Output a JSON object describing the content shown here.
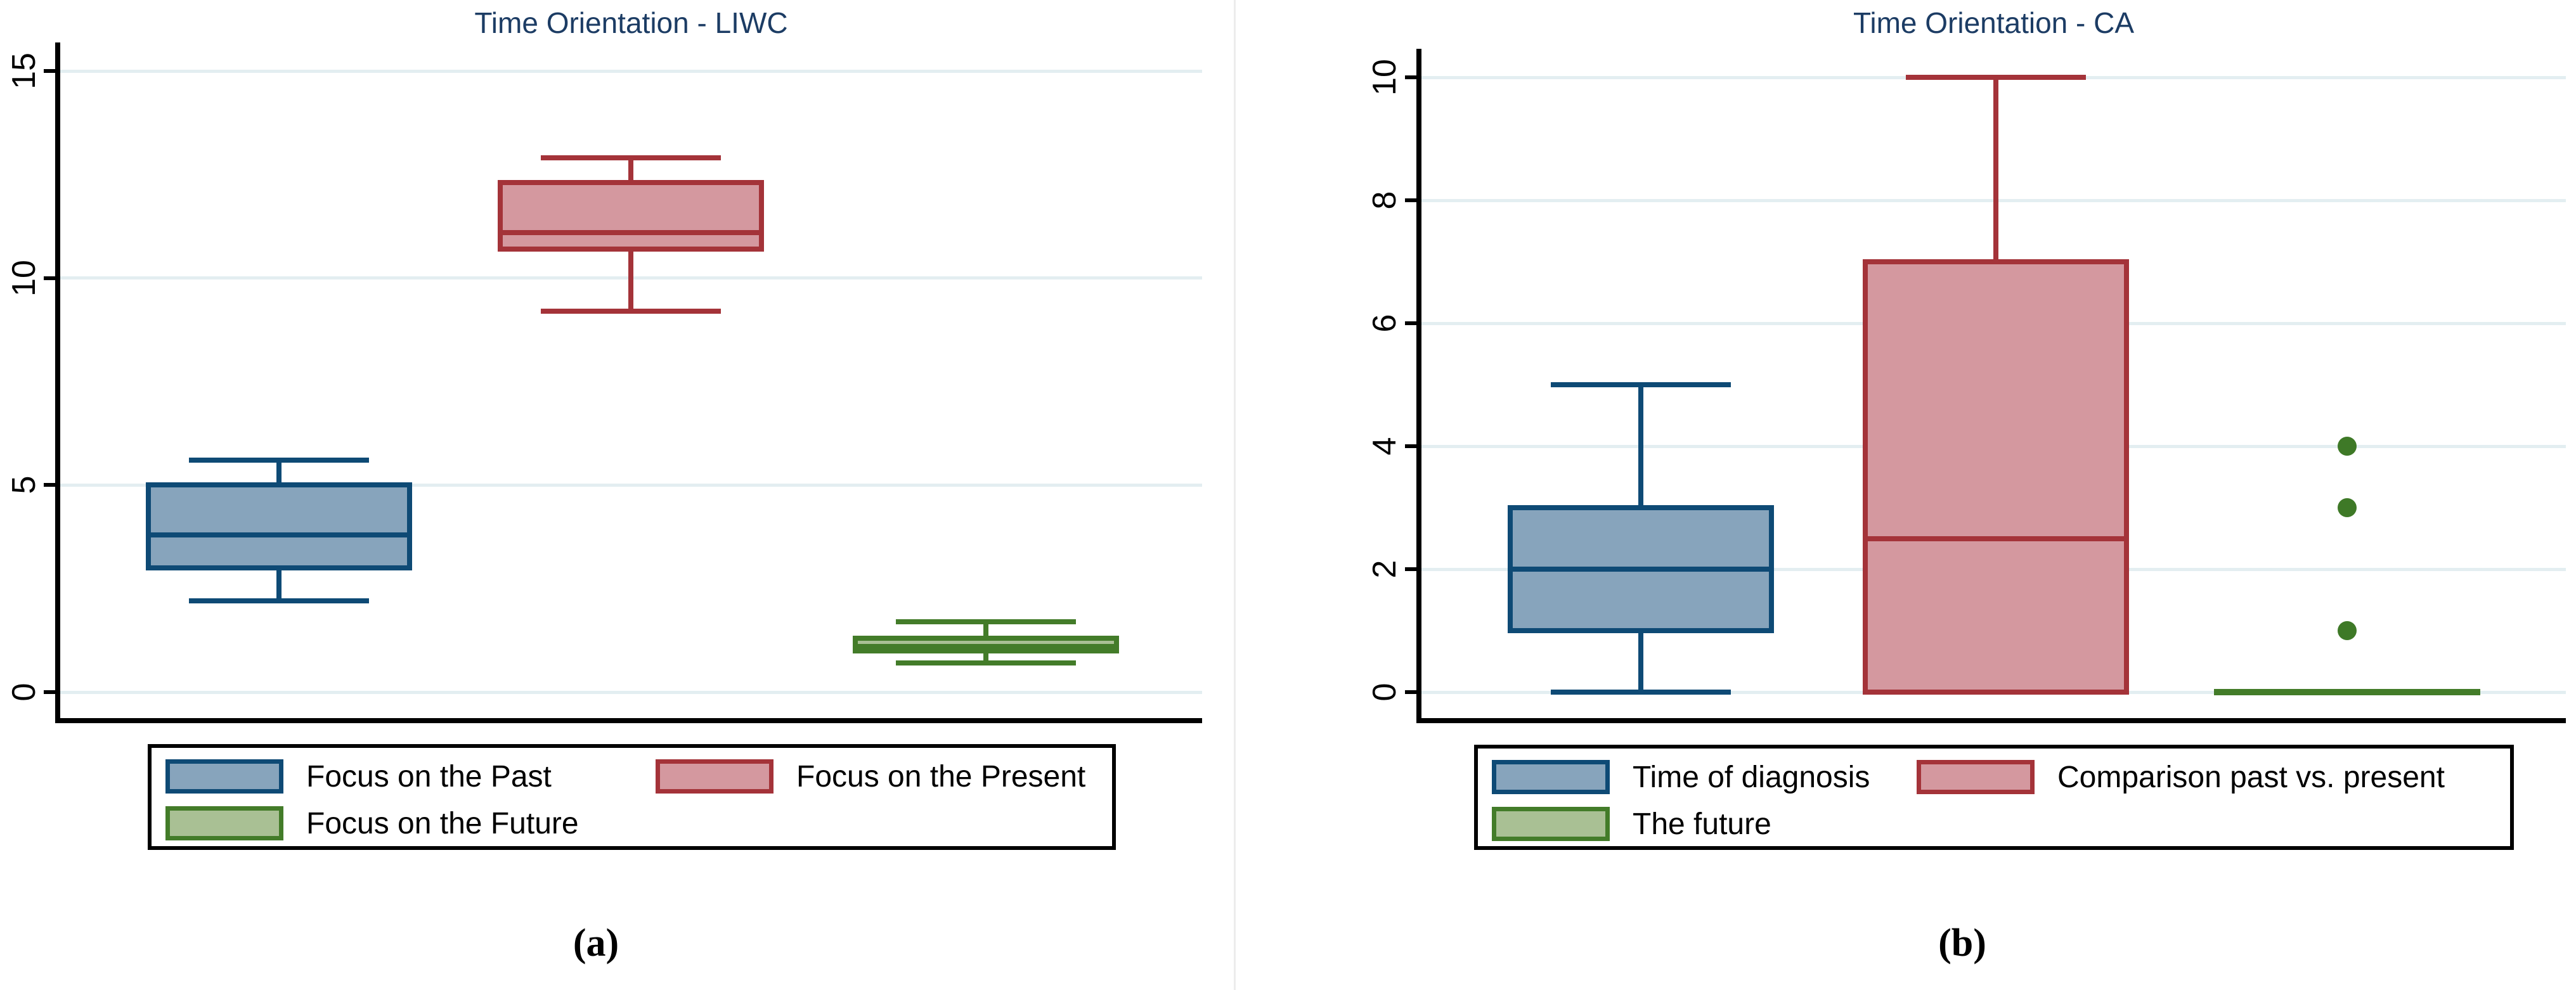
{
  "chart_data": [
    {
      "type": "box",
      "title": "Time Orientation - LIWC",
      "caption": "(a)",
      "ylim": [
        0,
        15
      ],
      "yticks": [
        0,
        5,
        10,
        15
      ],
      "grid": true,
      "legend_position": "bottom",
      "series": [
        {
          "name": "Focus on the Past",
          "min": 2.2,
          "q1": 3.0,
          "median": 3.8,
          "q3": 5.0,
          "max": 5.6,
          "outliers": []
        },
        {
          "name": "Focus on the Present",
          "min": 9.2,
          "q1": 10.7,
          "median": 11.1,
          "q3": 12.3,
          "max": 12.9,
          "outliers": []
        },
        {
          "name": "Focus on the Future",
          "min": 0.7,
          "q1": 1.0,
          "median": 1.1,
          "q3": 1.3,
          "max": 1.7,
          "outliers": []
        }
      ]
    },
    {
      "type": "box",
      "title": "Time Orientation - CA",
      "caption": "(b)",
      "ylim": [
        0,
        10
      ],
      "yticks": [
        0,
        2,
        4,
        6,
        8,
        10
      ],
      "grid": true,
      "legend_position": "bottom",
      "series": [
        {
          "name": "Time of diagnosis",
          "min": 0,
          "q1": 1,
          "median": 2,
          "q3": 3,
          "max": 5,
          "outliers": []
        },
        {
          "name": "Comparison past vs. present",
          "min": 0,
          "q1": 0,
          "median": 2.5,
          "q3": 7,
          "max": 10,
          "outliers": []
        },
        {
          "name": "The future",
          "min": 0,
          "q1": 0,
          "median": 0,
          "q3": 0,
          "max": 0,
          "outliers": [
            1,
            3,
            4
          ]
        }
      ]
    }
  ],
  "colors": {
    "series_fill": [
      "#87a4bc",
      "#d4989f",
      "#a9c094"
    ],
    "series_border": [
      "#0e4a75",
      "#a43339",
      "#437c29"
    ],
    "outlier_dot": "#3e7927",
    "title": "#1c3c64",
    "gridline": "#e3eef1",
    "axis": "#000000",
    "legend_border": "#000000",
    "background": "#ffffff",
    "panel_divider": "#ececec"
  }
}
